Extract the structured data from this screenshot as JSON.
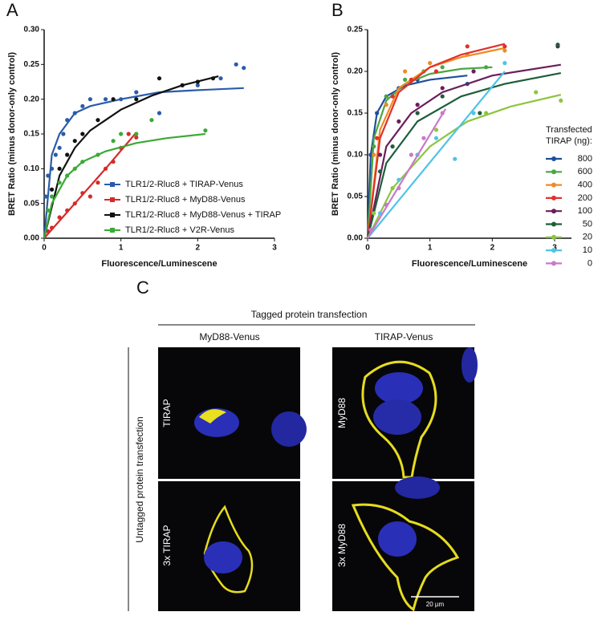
{
  "chart_data": [
    {
      "type": "scatter",
      "panel": "A",
      "x_label": "Fluorescence/Luminescene",
      "y_label": "BRET Ratio (minus donor-only control)",
      "xlim": [
        0,
        3
      ],
      "xticks": [
        0,
        1,
        2,
        3
      ],
      "ylim": [
        0,
        0.3
      ],
      "yticks": [
        {
          "value": 0,
          "label": "0.00"
        },
        {
          "value": 0.05,
          "label": "0.05"
        },
        {
          "value": 0.1,
          "label": "0.10"
        },
        {
          "value": 0.15,
          "label": "0.15"
        },
        {
          "value": 0.2,
          "label": "0.20"
        },
        {
          "value": 0.25,
          "label": "0.25"
        },
        {
          "value": 0.3,
          "label": "0.30"
        }
      ],
      "series": [
        {
          "name": "TLR1/2-Rluc8 + TIRAP-Venus",
          "color": "#2a5caa",
          "x": [
            0.02,
            0.05,
            0.1,
            0.15,
            0.2,
            0.25,
            0.3,
            0.4,
            0.5,
            0.6,
            0.8,
            1.0,
            1.2,
            1.5,
            1.8,
            2.0,
            2.3,
            2.5,
            2.6
          ],
          "values": [
            0.06,
            0.09,
            0.1,
            0.12,
            0.13,
            0.15,
            0.17,
            0.18,
            0.19,
            0.2,
            0.2,
            0.2,
            0.21,
            0.18,
            0.22,
            0.22,
            0.23,
            0.25,
            0.245
          ],
          "fit": {
            "x": [
              0,
              0.1,
              0.2,
              0.4,
              0.6,
              1,
              1.5,
              2,
              2.6
            ],
            "values": [
              0,
              0.12,
              0.15,
              0.18,
              0.19,
              0.2,
              0.21,
              0.213,
              0.216
            ]
          }
        },
        {
          "name": "TLR1/2-Rluc8 + MyD88-Venus",
          "color": "#d62a2a",
          "x": [
            0.05,
            0.1,
            0.2,
            0.3,
            0.4,
            0.5,
            0.6,
            0.7,
            0.8,
            0.9,
            1.0,
            1.1,
            1.2
          ],
          "values": [
            0.01,
            0.015,
            0.03,
            0.04,
            0.05,
            0.065,
            0.06,
            0.08,
            0.1,
            0.11,
            0.13,
            0.15,
            0.145
          ],
          "fit": {
            "x": [
              0,
              0.4,
              0.8,
              1.2
            ],
            "values": [
              0,
              0.05,
              0.1,
              0.152
            ]
          }
        },
        {
          "name": "TLR1/2-Rluc8 + MyD88-Venus + TIRAP",
          "color": "#111111",
          "x": [
            0.1,
            0.2,
            0.3,
            0.4,
            0.5,
            0.7,
            0.9,
            1.2,
            1.5,
            1.8,
            2.0,
            2.2
          ],
          "values": [
            0.07,
            0.1,
            0.12,
            0.14,
            0.15,
            0.17,
            0.2,
            0.2,
            0.23,
            0.22,
            0.225,
            0.23
          ],
          "fit": {
            "x": [
              0,
              0.2,
              0.4,
              0.6,
              0.8,
              1,
              1.4,
              1.8,
              2.27
            ],
            "values": [
              0,
              0.09,
              0.13,
              0.155,
              0.17,
              0.185,
              0.205,
              0.22,
              0.233
            ]
          }
        },
        {
          "name": "TLR1/2-Rluc8 + V2R-Venus",
          "color": "#3aaa35",
          "x": [
            0.05,
            0.1,
            0.2,
            0.3,
            0.4,
            0.5,
            0.7,
            0.9,
            1.0,
            1.2,
            1.4,
            2.1
          ],
          "values": [
            0.04,
            0.06,
            0.08,
            0.09,
            0.1,
            0.11,
            0.12,
            0.14,
            0.15,
            0.15,
            0.17,
            0.155
          ],
          "fit": {
            "x": [
              0,
              0.1,
              0.3,
              0.5,
              0.8,
              1.2,
              1.6,
              2.1
            ],
            "values": [
              0,
              0.05,
              0.09,
              0.11,
              0.125,
              0.137,
              0.144,
              0.15
            ]
          }
        }
      ]
    },
    {
      "type": "scatter",
      "panel": "B",
      "x_label": "Fluorescence/Luminescene",
      "y_label": "BRET Ratio (minus donor-only control)",
      "legend_title": [
        "Transfected",
        "TIRAP (ng):"
      ],
      "xlim": [
        0,
        3.27
      ],
      "xticks": [
        0,
        1,
        2,
        3
      ],
      "ylim": [
        0,
        0.25
      ],
      "yticks": [
        {
          "value": 0,
          "label": "0.00"
        },
        {
          "value": 0.05,
          "label": "0.05"
        },
        {
          "value": 0.1,
          "label": "0.10"
        },
        {
          "value": 0.15,
          "label": "0.15"
        },
        {
          "value": 0.2,
          "label": "0.20"
        },
        {
          "value": 0.25,
          "label": "0.25"
        }
      ],
      "series": [
        {
          "name": "800",
          "color": "#1f4e9c",
          "x": [
            0.05,
            0.15,
            0.3,
            0.5,
            0.8,
            1.6
          ],
          "values": [
            0.1,
            0.15,
            0.17,
            0.18,
            0.19,
            0.185
          ],
          "fit": {
            "x": [
              0,
              0.05,
              0.15,
              0.3,
              0.6,
              1,
              1.6
            ],
            "values": [
              0,
              0.1,
              0.15,
              0.17,
              0.183,
              0.19,
              0.195
            ]
          }
        },
        {
          "name": "600",
          "color": "#4aa642",
          "x": [
            0.1,
            0.3,
            0.6,
            0.9,
            1.2,
            1.9
          ],
          "values": [
            0.11,
            0.17,
            0.19,
            0.2,
            0.205,
            0.205
          ],
          "fit": {
            "x": [
              0,
              0.1,
              0.3,
              0.6,
              1,
              1.5,
              2.0
            ],
            "values": [
              0,
              0.12,
              0.165,
              0.185,
              0.197,
              0.203,
              0.205
            ]
          }
        },
        {
          "name": "400",
          "color": "#f08a24",
          "x": [
            0.1,
            0.3,
            0.6,
            1.0,
            1.6,
            2.2
          ],
          "values": [
            0.1,
            0.16,
            0.2,
            0.21,
            0.22,
            0.225
          ],
          "fit": {
            "x": [
              0,
              0.2,
              0.5,
              1,
              1.5,
              2.2
            ],
            "values": [
              0,
              0.13,
              0.18,
              0.205,
              0.217,
              0.228
            ]
          }
        },
        {
          "name": "200",
          "color": "#e0312b",
          "x": [
            0.15,
            0.4,
            0.7,
            1.1,
            1.6,
            2.2
          ],
          "values": [
            0.12,
            0.17,
            0.19,
            0.2,
            0.23,
            0.23
          ],
          "fit": {
            "x": [
              0,
              0.2,
              0.5,
              1,
              1.5,
              2.2
            ],
            "values": [
              0,
              0.12,
              0.175,
              0.205,
              0.22,
              0.233
            ]
          }
        },
        {
          "name": "100",
          "color": "#6b1e5a",
          "x": [
            0.2,
            0.5,
            0.8,
            1.2,
            1.7,
            3.05
          ],
          "values": [
            0.1,
            0.14,
            0.16,
            0.18,
            0.2,
            0.23
          ],
          "fit": {
            "x": [
              0,
              0.3,
              0.7,
              1.2,
              2,
              3.1
            ],
            "values": [
              0,
              0.11,
              0.15,
              0.175,
              0.195,
              0.208
            ]
          }
        },
        {
          "name": "50",
          "color": "#1e5e3a",
          "x": [
            0.2,
            0.4,
            0.8,
            1.2,
            1.8,
            3.05
          ],
          "values": [
            0.08,
            0.11,
            0.15,
            0.17,
            0.15,
            0.232
          ],
          "fit": {
            "x": [
              0,
              0.3,
              0.8,
              1.5,
              2.2,
              3.1
            ],
            "values": [
              0,
              0.09,
              0.14,
              0.17,
              0.185,
              0.198
            ]
          }
        },
        {
          "name": "20",
          "color": "#8cc63f",
          "x": [
            0.1,
            0.4,
            0.8,
            1.1,
            1.9,
            2.7,
            3.1
          ],
          "values": [
            0.03,
            0.06,
            0.1,
            0.13,
            0.15,
            0.175,
            0.165
          ],
          "fit": {
            "x": [
              0,
              0.4,
              1,
              1.6,
              2.3,
              3.1
            ],
            "values": [
              0,
              0.06,
              0.11,
              0.14,
              0.158,
              0.172
            ]
          }
        },
        {
          "name": "10",
          "color": "#4fc3e8",
          "x": [
            0.2,
            0.5,
            0.8,
            1.1,
            1.4,
            1.7,
            2.2
          ],
          "values": [
            0.03,
            0.07,
            0.1,
            0.12,
            0.095,
            0.15,
            0.21
          ],
          "fit": {
            "x": [
              0,
              2.2
            ],
            "values": [
              0,
              0.2
            ]
          }
        },
        {
          "name": "0",
          "color": "#c979c9",
          "x": [
            0.05,
            0.3,
            0.5,
            0.7,
            0.9,
            1.2
          ],
          "values": [
            0.01,
            0.04,
            0.06,
            0.1,
            0.12,
            0.15
          ],
          "fit": {
            "x": [
              0,
              1.25
            ],
            "values": [
              0,
              0.155
            ]
          }
        }
      ]
    }
  ],
  "panel_c": {
    "panel": "C",
    "title": "Tagged protein transfection",
    "columns": [
      "MyD88-Venus",
      "TIRAP-Venus"
    ],
    "row_title": "Untagged protein transfection",
    "image_labels": [
      "TIRAP",
      "MyD88",
      "3x TIRAP",
      "3x MyD88"
    ],
    "scale_bar": "20 µm"
  }
}
